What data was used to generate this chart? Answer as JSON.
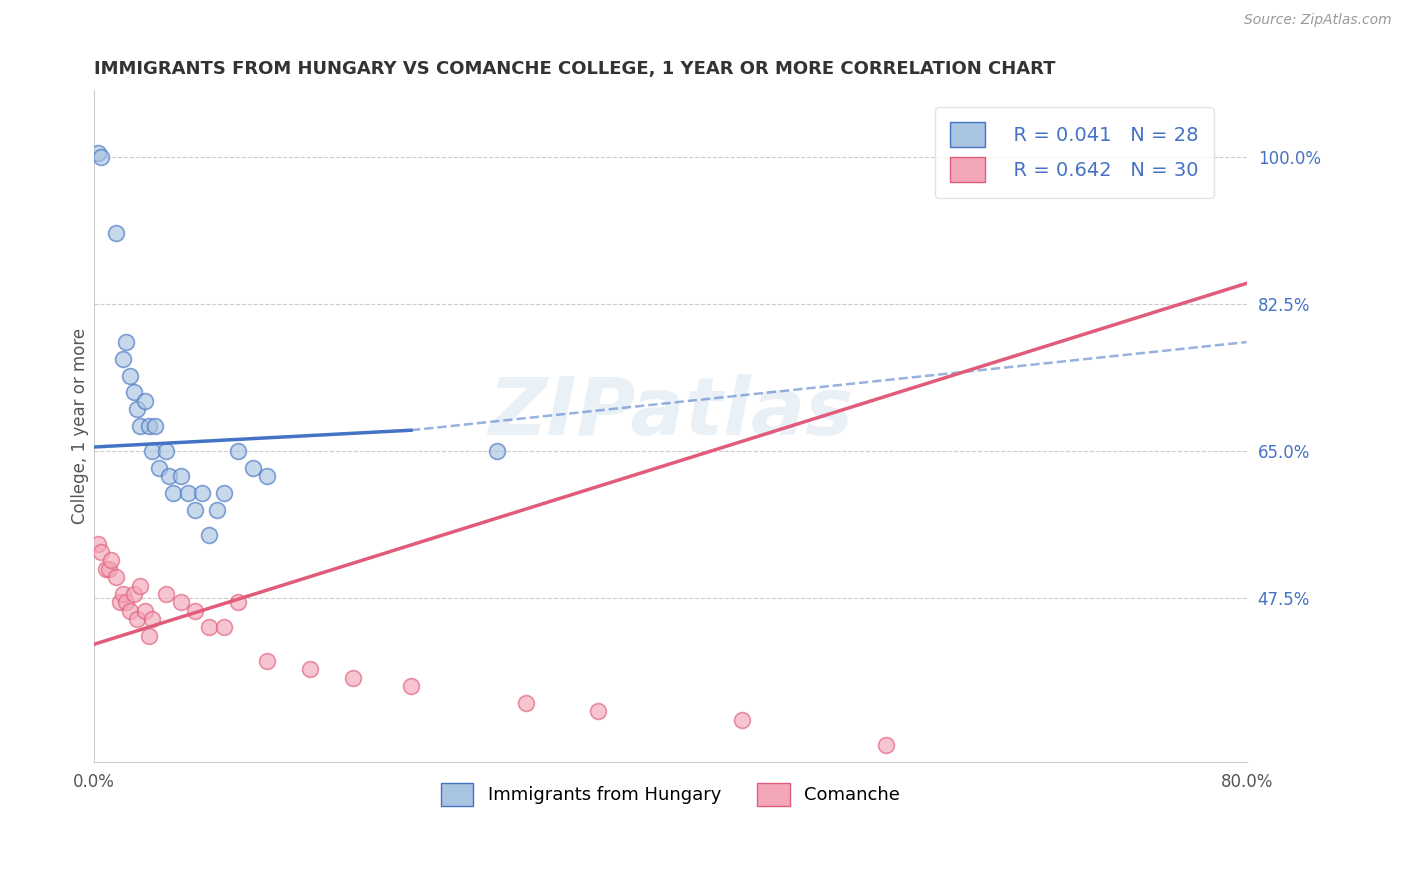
{
  "title": "IMMIGRANTS FROM HUNGARY VS COMANCHE COLLEGE, 1 YEAR OR MORE CORRELATION CHART",
  "source_text": "Source: ZipAtlas.com",
  "ylabel": "College, 1 year or more",
  "legend_label_blue": "Immigrants from Hungary",
  "legend_label_pink": "Comanche",
  "R_blue": 0.041,
  "N_blue": 28,
  "R_pink": 0.642,
  "N_pink": 30,
  "xlim": [
    0.0,
    80.0
  ],
  "ylim": [
    28.0,
    108.0
  ],
  "yticks": [
    47.5,
    65.0,
    82.5,
    100.0
  ],
  "blue_color": "#a8c4e0",
  "blue_line_color": "#4472c4",
  "pink_color": "#f4a7b9",
  "pink_line_color": "#e05c7a",
  "watermark": "ZIPatlas",
  "blue_scatter_x": [
    0.3,
    0.5,
    1.5,
    2.0,
    2.2,
    2.5,
    2.8,
    3.0,
    3.2,
    3.5,
    3.8,
    4.0,
    4.2,
    4.5,
    5.0,
    5.2,
    5.5,
    6.0,
    6.5,
    7.0,
    7.5,
    8.0,
    8.5,
    9.0,
    10.0,
    11.0,
    12.0,
    28.0
  ],
  "blue_scatter_y": [
    100.5,
    100.0,
    91.0,
    76.0,
    78.0,
    74.0,
    72.0,
    70.0,
    68.0,
    71.0,
    68.0,
    65.0,
    68.0,
    63.0,
    65.0,
    62.0,
    60.0,
    62.0,
    60.0,
    58.0,
    60.0,
    55.0,
    58.0,
    60.0,
    65.0,
    63.0,
    62.0,
    65.0
  ],
  "pink_scatter_x": [
    0.3,
    0.5,
    0.8,
    1.0,
    1.2,
    1.5,
    1.8,
    2.0,
    2.2,
    2.5,
    2.8,
    3.0,
    3.2,
    3.5,
    3.8,
    4.0,
    5.0,
    6.0,
    7.0,
    8.0,
    9.0,
    10.0,
    12.0,
    15.0,
    18.0,
    22.0,
    30.0,
    35.0,
    45.0,
    55.0
  ],
  "pink_scatter_y": [
    54.0,
    53.0,
    51.0,
    51.0,
    52.0,
    50.0,
    47.0,
    48.0,
    47.0,
    46.0,
    48.0,
    45.0,
    49.0,
    46.0,
    43.0,
    45.0,
    48.0,
    47.0,
    46.0,
    44.0,
    44.0,
    47.0,
    40.0,
    39.0,
    38.0,
    37.0,
    35.0,
    34.0,
    33.0,
    30.0
  ],
  "blue_solid_line_x": [
    0.0,
    22.0
  ],
  "blue_solid_line_y": [
    65.5,
    67.5
  ],
  "blue_dashed_line_x": [
    22.0,
    80.0
  ],
  "blue_dashed_line_y": [
    67.5,
    78.0
  ],
  "pink_line_x": [
    0.0,
    80.0
  ],
  "pink_line_y": [
    42.0,
    85.0
  ]
}
